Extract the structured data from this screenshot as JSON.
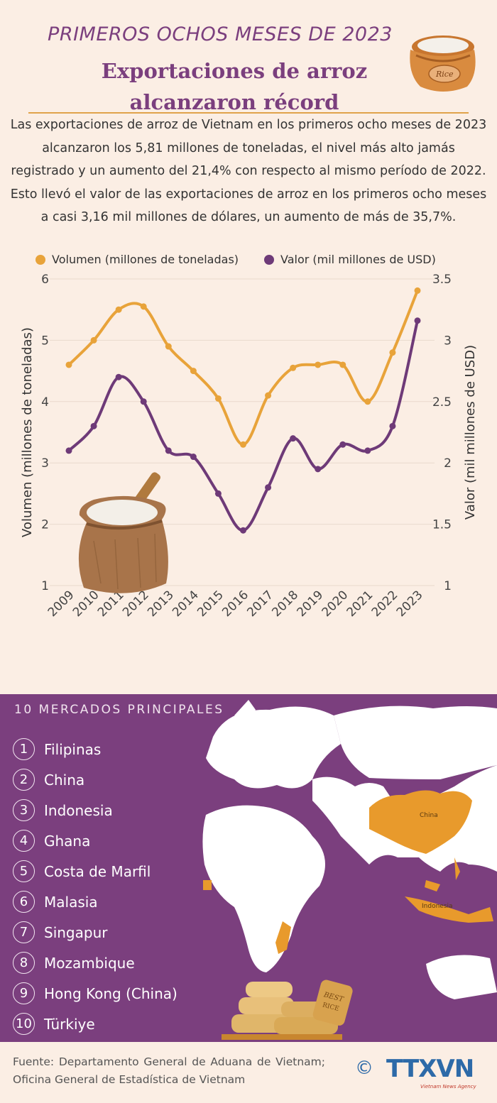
{
  "header": {
    "kicker": "PRIMEROS OCHOS MESES DE 2023",
    "title_line1": "Exportaciones de arroz",
    "title_line2": "alcanzaron récord",
    "intro": "Las exportaciones de arroz de Vietnam en los primeros ocho meses de 2023 alcanzaron los 5,81 millones de toneladas, el nivel más alto jamás registrado y un aumento del 21,4% con respecto al mismo período de 2022. Esto llevó el valor de las exportaciones de arroz en los primeros ocho meses a casi 3,16 mil millones de dólares, un aumento de más de 35,7%."
  },
  "legend": {
    "volume": "Volumen (millones de toneladas)",
    "value": "Valor (mil millones de USD)"
  },
  "colors": {
    "accent_purple": "#7b3f7e",
    "volume_line": "#e8a33a",
    "value_line": "#6e3a78",
    "background": "#fbeee4"
  },
  "chart_data": {
    "type": "line",
    "title": "",
    "x": [
      "2009",
      "2010",
      "2011",
      "2012",
      "2013",
      "2014",
      "2015",
      "2016",
      "2017",
      "2018",
      "2019",
      "2020",
      "2021",
      "2022",
      "2023"
    ],
    "xlabel": "",
    "ylabel_left": "Volumen (millones de toneladas)",
    "ylabel_right": "Valor (mil millones de USD)",
    "ylim_left": [
      1,
      6
    ],
    "ylim_right": [
      1,
      3.5
    ],
    "yticks_left": [
      "1",
      "2",
      "3",
      "4",
      "5",
      "6"
    ],
    "yticks_right": [
      "1",
      "1.5",
      "2",
      "2.5",
      "3",
      "3.5"
    ],
    "grid": true,
    "legend_position": "top",
    "series": [
      {
        "name": "Volumen (millones de toneladas)",
        "axis": "left",
        "color": "#e8a33a",
        "values": [
          4.6,
          5.0,
          5.5,
          5.55,
          4.9,
          4.5,
          4.05,
          3.3,
          4.1,
          4.55,
          4.6,
          4.6,
          4.0,
          4.8,
          5.81
        ]
      },
      {
        "name": "Valor (mil millones de USD)",
        "axis": "right",
        "color": "#6e3a78",
        "values": [
          2.1,
          2.3,
          2.7,
          2.5,
          2.1,
          2.05,
          1.75,
          1.45,
          1.8,
          2.2,
          1.95,
          2.15,
          2.1,
          2.3,
          3.16
        ]
      }
    ]
  },
  "markets": {
    "title": "10 MERCADOS PRINCIPALES",
    "items": [
      {
        "rank": "1",
        "name": "Filipinas"
      },
      {
        "rank": "2",
        "name": "China"
      },
      {
        "rank": "3",
        "name": "Indonesia"
      },
      {
        "rank": "4",
        "name": "Ghana"
      },
      {
        "rank": "5",
        "name": "Costa de Marfil"
      },
      {
        "rank": "6",
        "name": "Malasia"
      },
      {
        "rank": "7",
        "name": "Singapur"
      },
      {
        "rank": "8",
        "name": "Mozambique"
      },
      {
        "rank": "9",
        "name": "Hong Kong (China)"
      },
      {
        "rank": "10",
        "name": "Türkiye"
      }
    ],
    "map_labels": {
      "china": "China",
      "indonesia": "Indonesia"
    }
  },
  "footer": {
    "source": "Fuente: Departamento General de Aduana de Vietnam; Oficina General de Estadística de Vietnam",
    "logo_mark": "©",
    "logo_text": "TTXVN",
    "logo_sub": "Vietnam News Agency"
  }
}
